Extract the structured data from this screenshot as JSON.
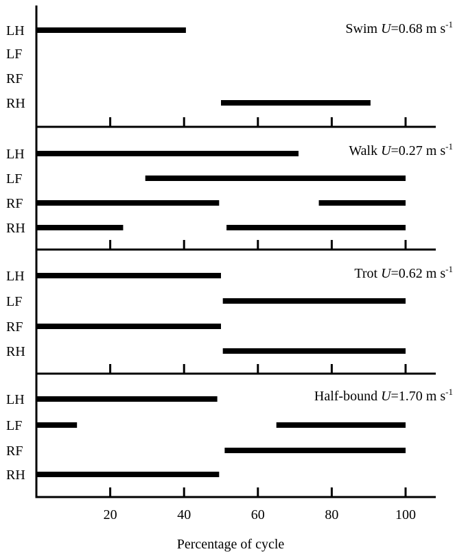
{
  "chart_data": {
    "type": "gait-diagram",
    "xlabel": "Percentage of cycle",
    "xticks": [
      20,
      40,
      60,
      80,
      100
    ],
    "xlim": [
      0,
      108
    ],
    "limbs": [
      "LH",
      "LF",
      "RF",
      "RH"
    ],
    "panels": [
      {
        "gait": "Swim",
        "speed_prefix": "U",
        "speed_value": "=0.68 m s",
        "speed_exponent": "-1",
        "bars": {
          "LH": [
            [
              0,
              40.5
            ]
          ],
          "LF": [],
          "RF": [],
          "RH": [
            [
              50,
              90.5
            ]
          ]
        }
      },
      {
        "gait": "Walk",
        "speed_prefix": "U",
        "speed_value": "=0.27 m s",
        "speed_exponent": "-1",
        "bars": {
          "LH": [
            [
              0,
              71
            ]
          ],
          "LF": [
            [
              29.5,
              100
            ]
          ],
          "RF": [
            [
              0,
              49.5
            ],
            [
              76.5,
              100
            ]
          ],
          "RH": [
            [
              0,
              23.5
            ],
            [
              51.5,
              100
            ]
          ]
        }
      },
      {
        "gait": "Trot",
        "speed_prefix": "U",
        "speed_value": "=0.62 m s",
        "speed_exponent": "-1",
        "bars": {
          "LH": [
            [
              0,
              50
            ]
          ],
          "LF": [
            [
              50.5,
              100
            ]
          ],
          "RF": [
            [
              0,
              50
            ]
          ],
          "RH": [
            [
              50.5,
              100
            ]
          ]
        }
      },
      {
        "gait": "Half-bound",
        "speed_prefix": "U",
        "speed_value": "=1.70 m s",
        "speed_exponent": "-1",
        "bars": {
          "LH": [
            [
              0,
              49
            ]
          ],
          "LF": [
            [
              0,
              11
            ],
            [
              65,
              100
            ]
          ],
          "RF": [
            [
              51,
              100
            ]
          ],
          "RH": [
            [
              0,
              49.5
            ]
          ]
        }
      }
    ]
  }
}
